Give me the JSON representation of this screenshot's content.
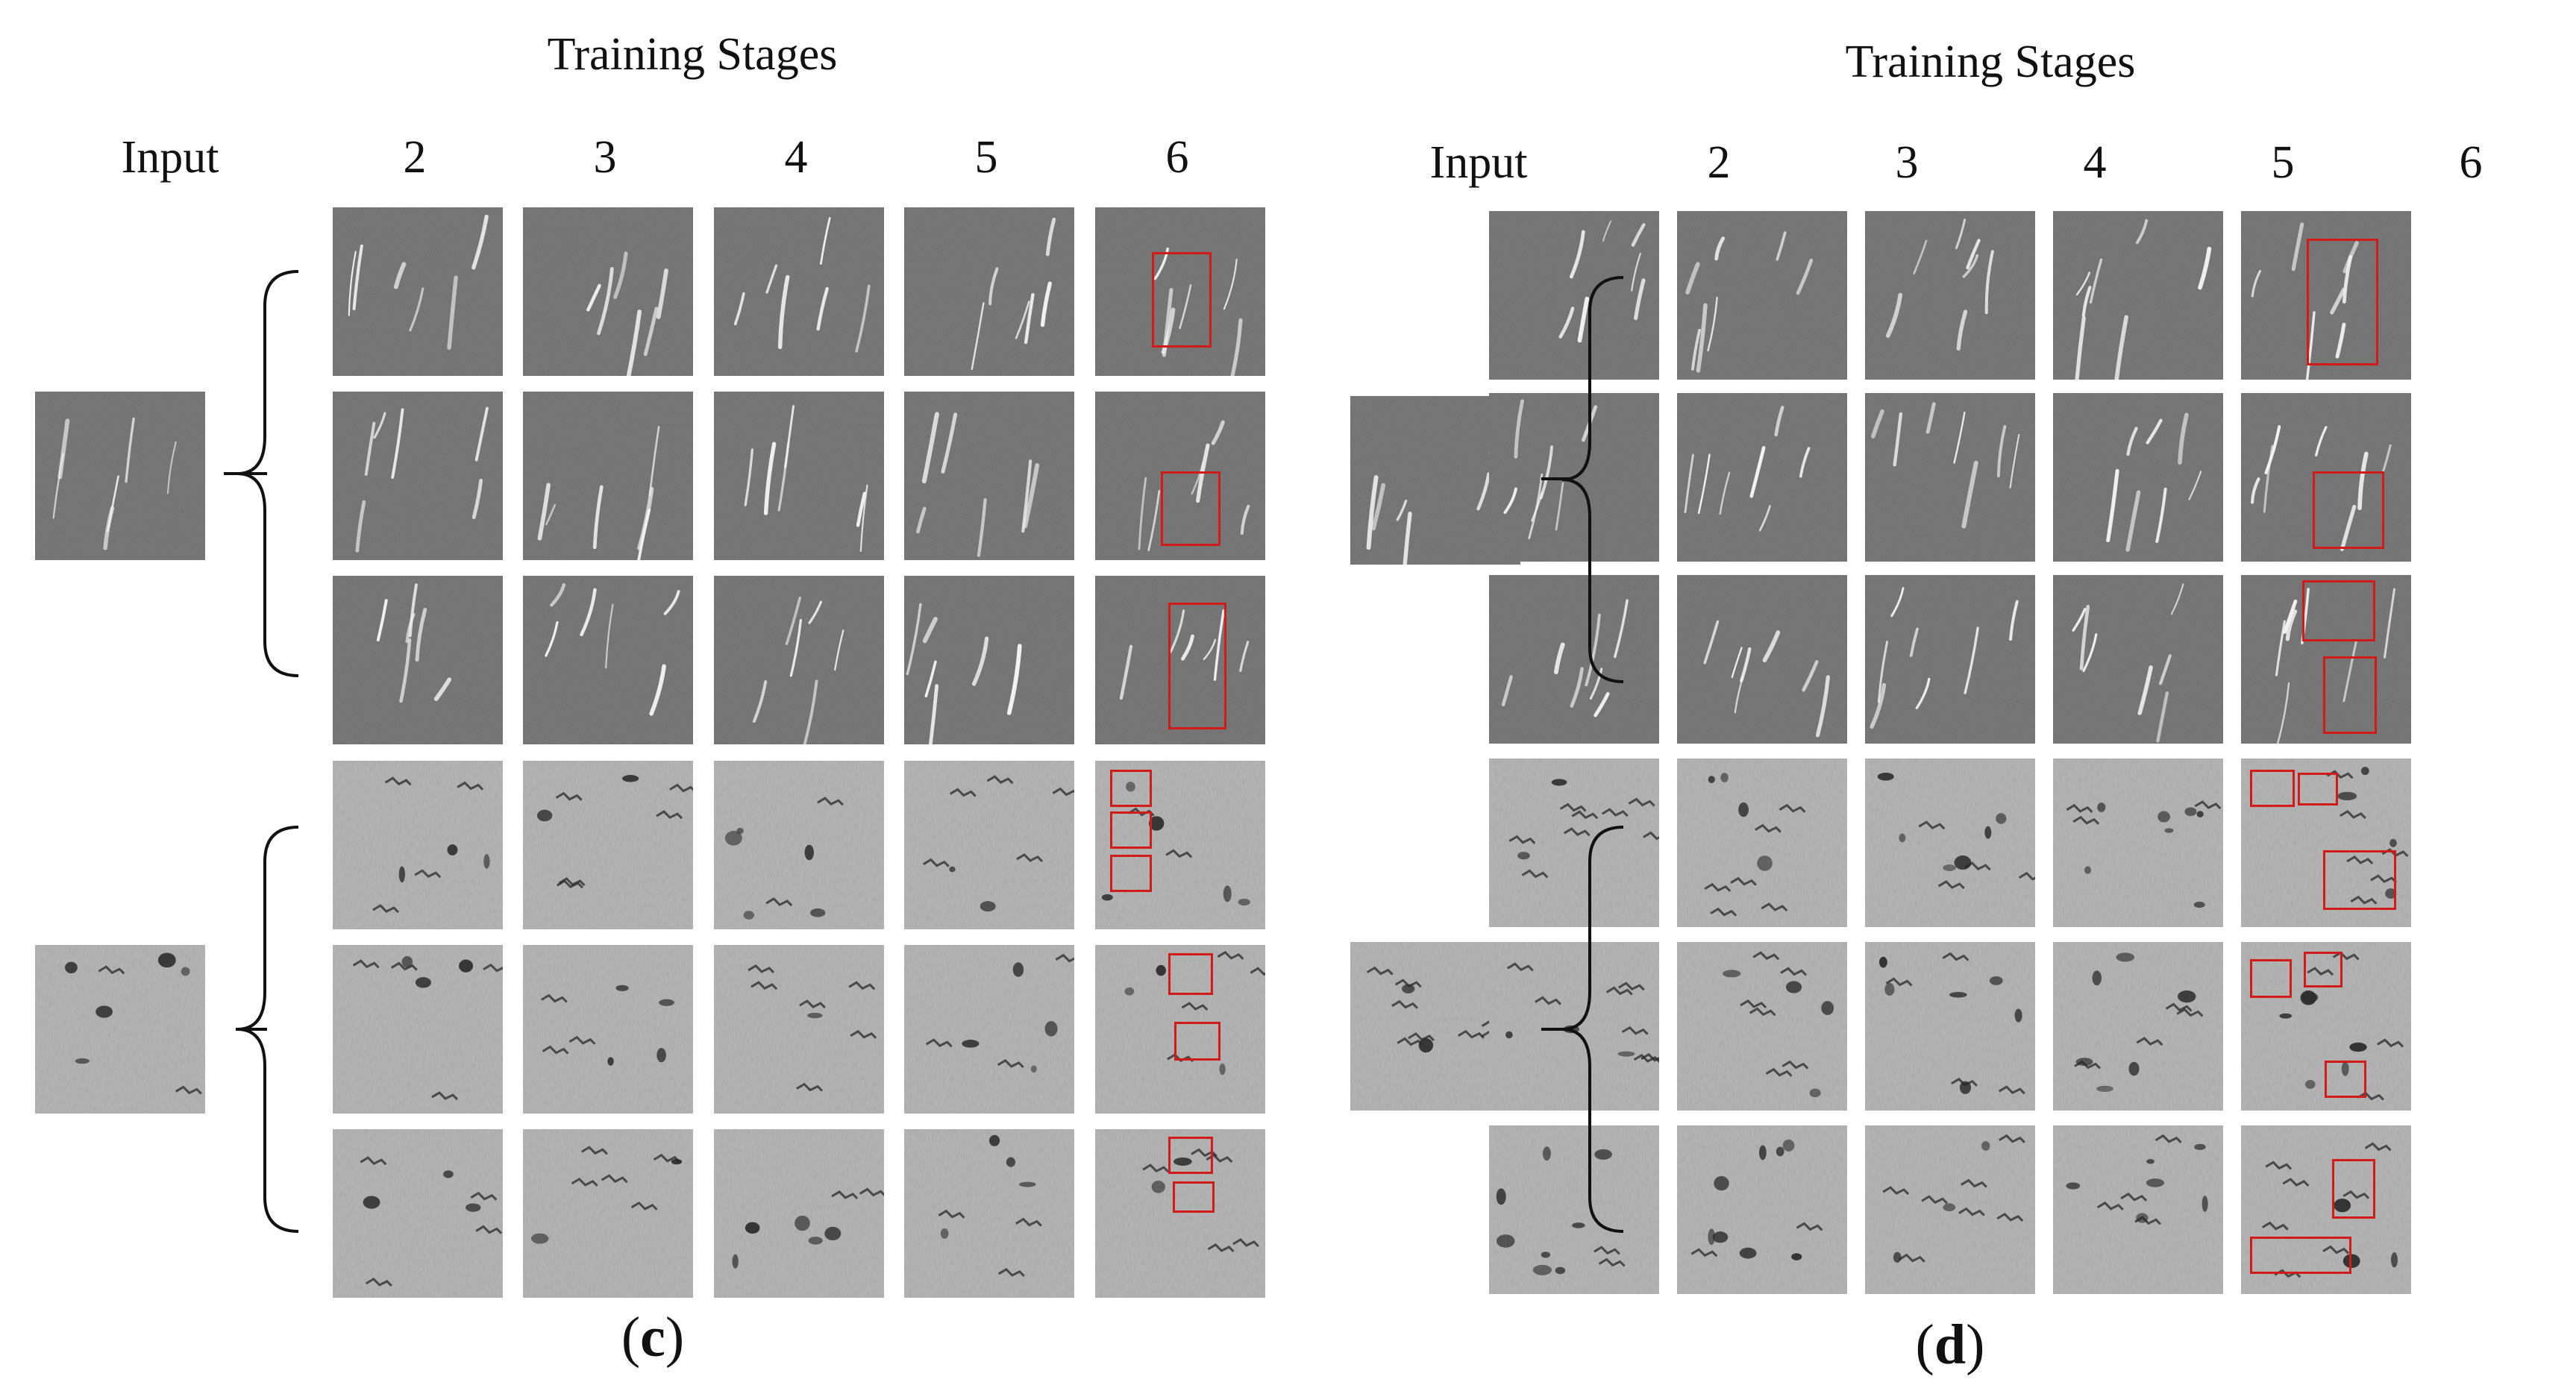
{
  "panels": [
    {
      "title": "Training Stages",
      "input_label": "Input",
      "stages": [
        "2",
        "3",
        "4",
        "5",
        "6"
      ],
      "caption_open": "(",
      "caption_letter": "c",
      "caption_close": ")",
      "groups": [
        {
          "texture": "streak",
          "rows": 3
        },
        {
          "texture": "pitted",
          "rows": 3
        }
      ]
    },
    {
      "title": "Training Stages",
      "input_label": "Input",
      "stages": [
        "2",
        "3",
        "4",
        "5",
        "6"
      ],
      "caption_open": "(",
      "caption_letter": "d",
      "caption_close": ")",
      "groups": [
        {
          "texture": "streak",
          "rows": 3
        },
        {
          "texture": "pitted",
          "rows": 3
        }
      ]
    }
  ],
  "colors": {
    "streak_bg": "#6a6a6a",
    "pitted_bg": "#a9a9a9",
    "highlight_box": "#d11a1a"
  }
}
